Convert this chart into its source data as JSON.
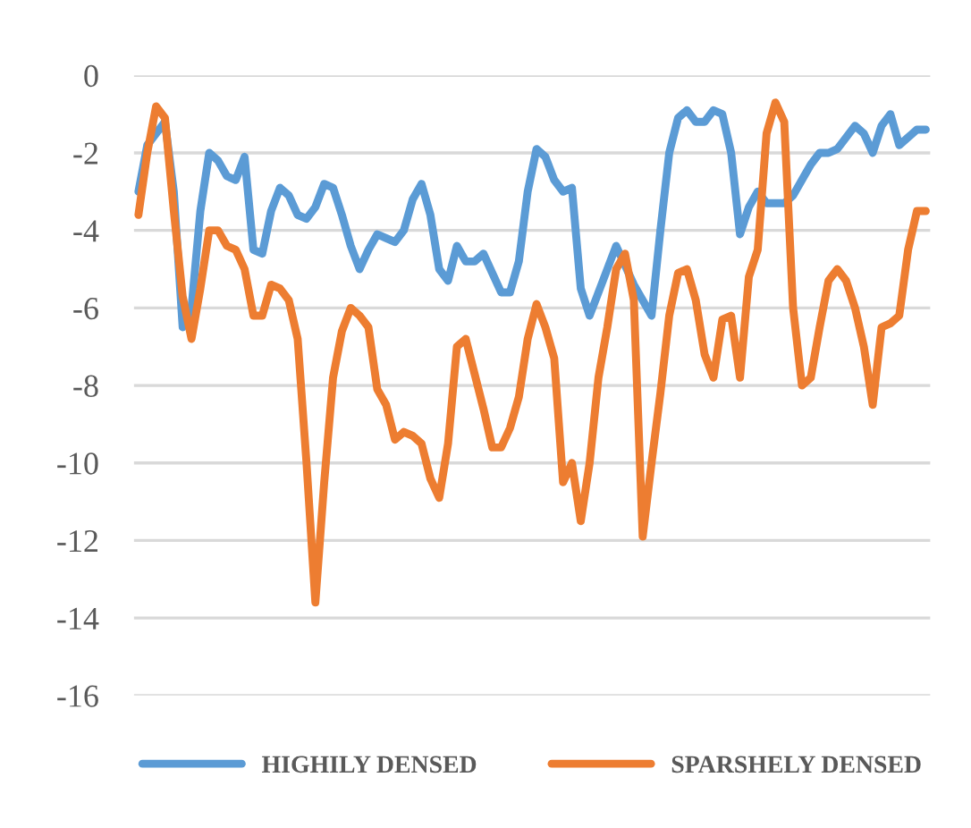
{
  "chart_data": {
    "type": "line",
    "categories": [
      null,
      null,
      null,
      null,
      null,
      null,
      null,
      null,
      null,
      null,
      null,
      null,
      null,
      null,
      null,
      null,
      null,
      null,
      null,
      null,
      null,
      null,
      null,
      null,
      null,
      null,
      null,
      null,
      null,
      null,
      null,
      null,
      null,
      null,
      null,
      null,
      null,
      null,
      null,
      null,
      null,
      null,
      null,
      null,
      null,
      null,
      null,
      null,
      null,
      null,
      null,
      null,
      null,
      null,
      null,
      null,
      null,
      null,
      null,
      null,
      null,
      null,
      null,
      null,
      null,
      null,
      null,
      null,
      null,
      null,
      null,
      null,
      null,
      null,
      null,
      null,
      null,
      null,
      null,
      null,
      null,
      null,
      null,
      null,
      null,
      null,
      null,
      null,
      null,
      null
    ],
    "series": [
      {
        "name": "HIGHILY DENSED",
        "color": "#5b9bd5",
        "values": [
          -3.0,
          -1.8,
          -1.5,
          -1.2,
          -3.0,
          -6.5,
          -6.0,
          -3.5,
          -2.0,
          -2.2,
          -2.6,
          -2.7,
          -2.1,
          -4.5,
          -4.6,
          -3.5,
          -2.9,
          -3.1,
          -3.6,
          -3.7,
          -3.4,
          -2.8,
          -2.9,
          -3.6,
          -4.4,
          -5.0,
          -4.5,
          -4.1,
          -4.2,
          -4.3,
          -4.0,
          -3.2,
          -2.8,
          -3.6,
          -5.0,
          -5.3,
          -4.4,
          -4.8,
          -4.8,
          -4.6,
          -5.1,
          -5.6,
          -5.6,
          -4.8,
          -3.0,
          -1.9,
          -2.1,
          -2.7,
          -3.0,
          -2.9,
          -5.5,
          -6.2,
          -5.6,
          -5.0,
          -4.4,
          -4.9,
          -5.4,
          -5.8,
          -6.2,
          -4.0,
          -2.0,
          -1.1,
          -0.9,
          -1.2,
          -1.2,
          -0.9,
          -1.0,
          -2.0,
          -4.1,
          -3.4,
          -3.0,
          -3.3,
          -3.3,
          -3.3,
          -3.1,
          -2.7,
          -2.3,
          -2.0,
          -2.0,
          -1.9,
          -1.6,
          -1.3,
          -1.5,
          -2.0,
          -1.3,
          -1.0,
          -1.8,
          -1.6,
          -1.4,
          -1.4
        ]
      },
      {
        "name": "SPARSHELY DENSED",
        "color": "#ed7d31",
        "values": [
          -3.6,
          -2.0,
          -0.8,
          -1.1,
          -3.5,
          -5.7,
          -6.8,
          -5.5,
          -4.0,
          -4.0,
          -4.4,
          -4.5,
          -5.0,
          -6.2,
          -6.2,
          -5.4,
          -5.5,
          -5.8,
          -6.8,
          -10.0,
          -13.6,
          -10.5,
          -7.8,
          -6.6,
          -6.0,
          -6.2,
          -6.5,
          -8.1,
          -8.5,
          -9.4,
          -9.2,
          -9.3,
          -9.5,
          -10.4,
          -10.9,
          -9.5,
          -7.0,
          -6.8,
          -7.7,
          -8.6,
          -9.6,
          -9.6,
          -9.1,
          -8.3,
          -6.8,
          -5.9,
          -6.5,
          -7.3,
          -10.5,
          -10.0,
          -11.5,
          -10.0,
          -7.8,
          -6.5,
          -5.0,
          -4.6,
          -5.8,
          -11.9,
          -10.0,
          -8.2,
          -6.2,
          -5.1,
          -5.0,
          -5.8,
          -7.2,
          -7.8,
          -6.3,
          -6.2,
          -7.8,
          -5.2,
          -4.5,
          -1.5,
          -0.7,
          -1.2,
          -6.0,
          -8.0,
          -7.8,
          -6.5,
          -5.3,
          -5.0,
          -5.3,
          -6.0,
          -7.0,
          -8.5,
          -6.5,
          -6.4,
          -6.2,
          -4.5,
          -3.5,
          -3.5
        ]
      }
    ],
    "ylim": [
      -16,
      0
    ],
    "yticks": [
      -16,
      -14,
      -12,
      -10,
      -8,
      -6,
      -4,
      -2,
      0
    ],
    "grid": "y",
    "legend": "bottom",
    "marker": "none",
    "line_style": "solid"
  }
}
